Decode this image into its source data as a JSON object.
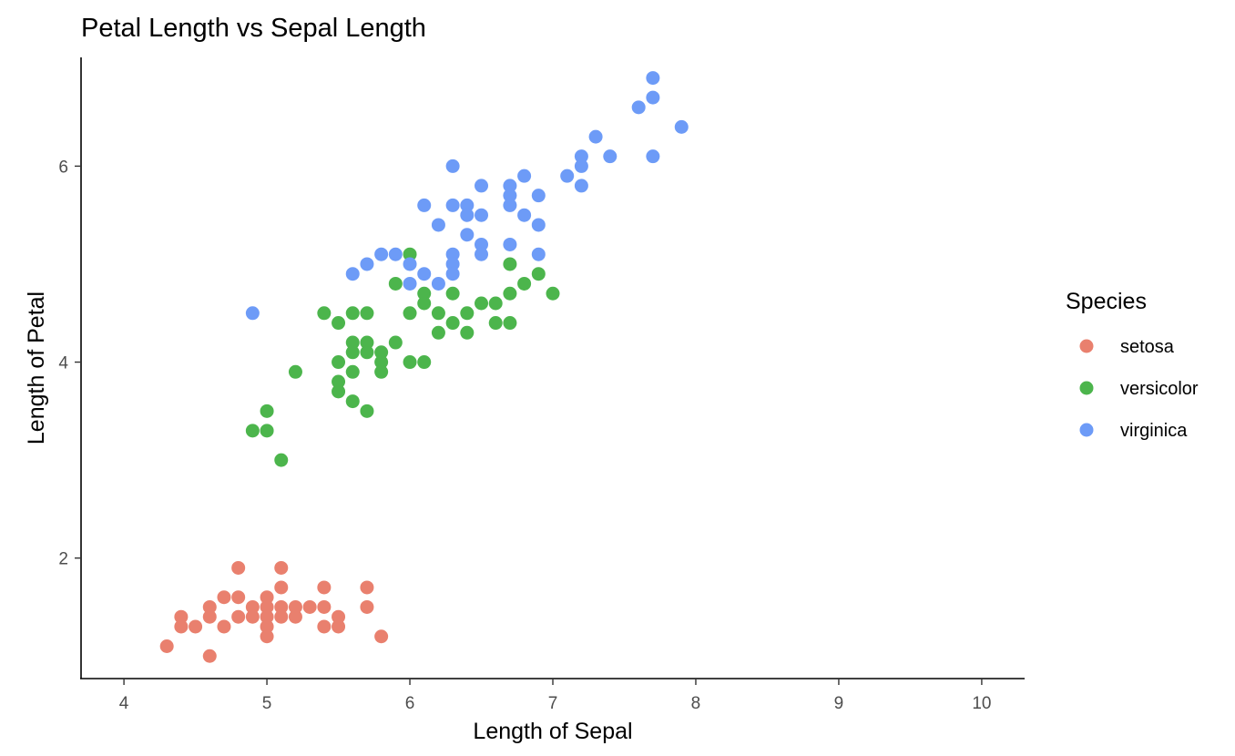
{
  "chart_data": {
    "type": "scatter",
    "title": "Petal Length vs Sepal Length",
    "xlabel": "Length of Sepal",
    "ylabel": "Length of Petal",
    "xlim": [
      3.7,
      10.3
    ],
    "ylim": [
      0.77,
      7.11
    ],
    "xticks": [
      4,
      5,
      6,
      7,
      8,
      9,
      10
    ],
    "yticks": [
      2,
      4,
      6
    ],
    "grid": false,
    "legend": {
      "title": "Species",
      "placement": "right"
    },
    "series": [
      {
        "name": "setosa",
        "color": "#E9806E",
        "points": [
          [
            4.3,
            1.1
          ],
          [
            4.4,
            1.4
          ],
          [
            4.4,
            1.3
          ],
          [
            4.5,
            1.3
          ],
          [
            4.6,
            1.0
          ],
          [
            4.6,
            1.5
          ],
          [
            4.6,
            1.4
          ],
          [
            4.7,
            1.6
          ],
          [
            4.7,
            1.3
          ],
          [
            4.8,
            1.9
          ],
          [
            4.8,
            1.6
          ],
          [
            4.8,
            1.4
          ],
          [
            4.9,
            1.5
          ],
          [
            4.9,
            1.4
          ],
          [
            5.0,
            1.6
          ],
          [
            5.0,
            1.5
          ],
          [
            5.0,
            1.4
          ],
          [
            5.0,
            1.3
          ],
          [
            5.0,
            1.2
          ],
          [
            5.1,
            1.9
          ],
          [
            5.1,
            1.7
          ],
          [
            5.1,
            1.5
          ],
          [
            5.1,
            1.4
          ],
          [
            5.2,
            1.5
          ],
          [
            5.2,
            1.4
          ],
          [
            5.3,
            1.5
          ],
          [
            5.4,
            1.7
          ],
          [
            5.4,
            1.5
          ],
          [
            5.4,
            1.3
          ],
          [
            5.5,
            1.4
          ],
          [
            5.5,
            1.3
          ],
          [
            5.7,
            1.7
          ],
          [
            5.7,
            1.5
          ],
          [
            5.8,
            1.2
          ]
        ]
      },
      {
        "name": "versicolor",
        "color": "#4CB54C",
        "points": [
          [
            4.9,
            3.3
          ],
          [
            5.0,
            3.5
          ],
          [
            5.0,
            3.3
          ],
          [
            5.1,
            3.0
          ],
          [
            5.2,
            3.9
          ],
          [
            5.4,
            4.5
          ],
          [
            5.5,
            4.4
          ],
          [
            5.5,
            4.0
          ],
          [
            5.5,
            3.8
          ],
          [
            5.5,
            3.7
          ],
          [
            5.6,
            4.5
          ],
          [
            5.6,
            4.2
          ],
          [
            5.6,
            4.1
          ],
          [
            5.6,
            3.9
          ],
          [
            5.6,
            3.6
          ],
          [
            5.7,
            4.5
          ],
          [
            5.7,
            4.2
          ],
          [
            5.7,
            4.1
          ],
          [
            5.7,
            3.5
          ],
          [
            5.8,
            4.1
          ],
          [
            5.8,
            4.0
          ],
          [
            5.8,
            3.9
          ],
          [
            5.9,
            4.8
          ],
          [
            5.9,
            4.2
          ],
          [
            6.0,
            5.1
          ],
          [
            6.0,
            4.5
          ],
          [
            6.0,
            4.0
          ],
          [
            6.1,
            4.7
          ],
          [
            6.1,
            4.6
          ],
          [
            6.1,
            4.0
          ],
          [
            6.2,
            4.5
          ],
          [
            6.2,
            4.3
          ],
          [
            6.3,
            4.7
          ],
          [
            6.3,
            4.4
          ],
          [
            6.4,
            4.5
          ],
          [
            6.4,
            4.3
          ],
          [
            6.5,
            4.6
          ],
          [
            6.6,
            4.6
          ],
          [
            6.6,
            4.4
          ],
          [
            6.7,
            5.0
          ],
          [
            6.7,
            4.7
          ],
          [
            6.7,
            4.4
          ],
          [
            6.8,
            4.8
          ],
          [
            6.9,
            4.9
          ],
          [
            7.0,
            4.7
          ]
        ]
      },
      {
        "name": "virginica",
        "color": "#6D9BF7",
        "points": [
          [
            4.9,
            4.5
          ],
          [
            5.6,
            4.9
          ],
          [
            5.7,
            5.0
          ],
          [
            5.8,
            5.1
          ],
          [
            5.9,
            5.1
          ],
          [
            6.0,
            5.0
          ],
          [
            6.0,
            4.8
          ],
          [
            6.1,
            5.6
          ],
          [
            6.1,
            4.9
          ],
          [
            6.2,
            5.4
          ],
          [
            6.2,
            4.8
          ],
          [
            6.3,
            6.0
          ],
          [
            6.3,
            5.6
          ],
          [
            6.3,
            5.1
          ],
          [
            6.3,
            5.0
          ],
          [
            6.3,
            4.9
          ],
          [
            6.4,
            5.6
          ],
          [
            6.4,
            5.5
          ],
          [
            6.4,
            5.3
          ],
          [
            6.5,
            5.8
          ],
          [
            6.5,
            5.5
          ],
          [
            6.5,
            5.2
          ],
          [
            6.5,
            5.1
          ],
          [
            6.7,
            5.8
          ],
          [
            6.7,
            5.7
          ],
          [
            6.7,
            5.6
          ],
          [
            6.7,
            5.2
          ],
          [
            6.8,
            5.9
          ],
          [
            6.8,
            5.5
          ],
          [
            6.9,
            5.7
          ],
          [
            6.9,
            5.4
          ],
          [
            6.9,
            5.1
          ],
          [
            7.1,
            5.9
          ],
          [
            7.2,
            6.1
          ],
          [
            7.2,
            6.0
          ],
          [
            7.2,
            5.8
          ],
          [
            7.3,
            6.3
          ],
          [
            7.4,
            6.1
          ],
          [
            7.6,
            6.6
          ],
          [
            7.7,
            6.9
          ],
          [
            7.7,
            6.7
          ],
          [
            7.7,
            6.1
          ],
          [
            7.9,
            6.4
          ]
        ]
      }
    ]
  }
}
